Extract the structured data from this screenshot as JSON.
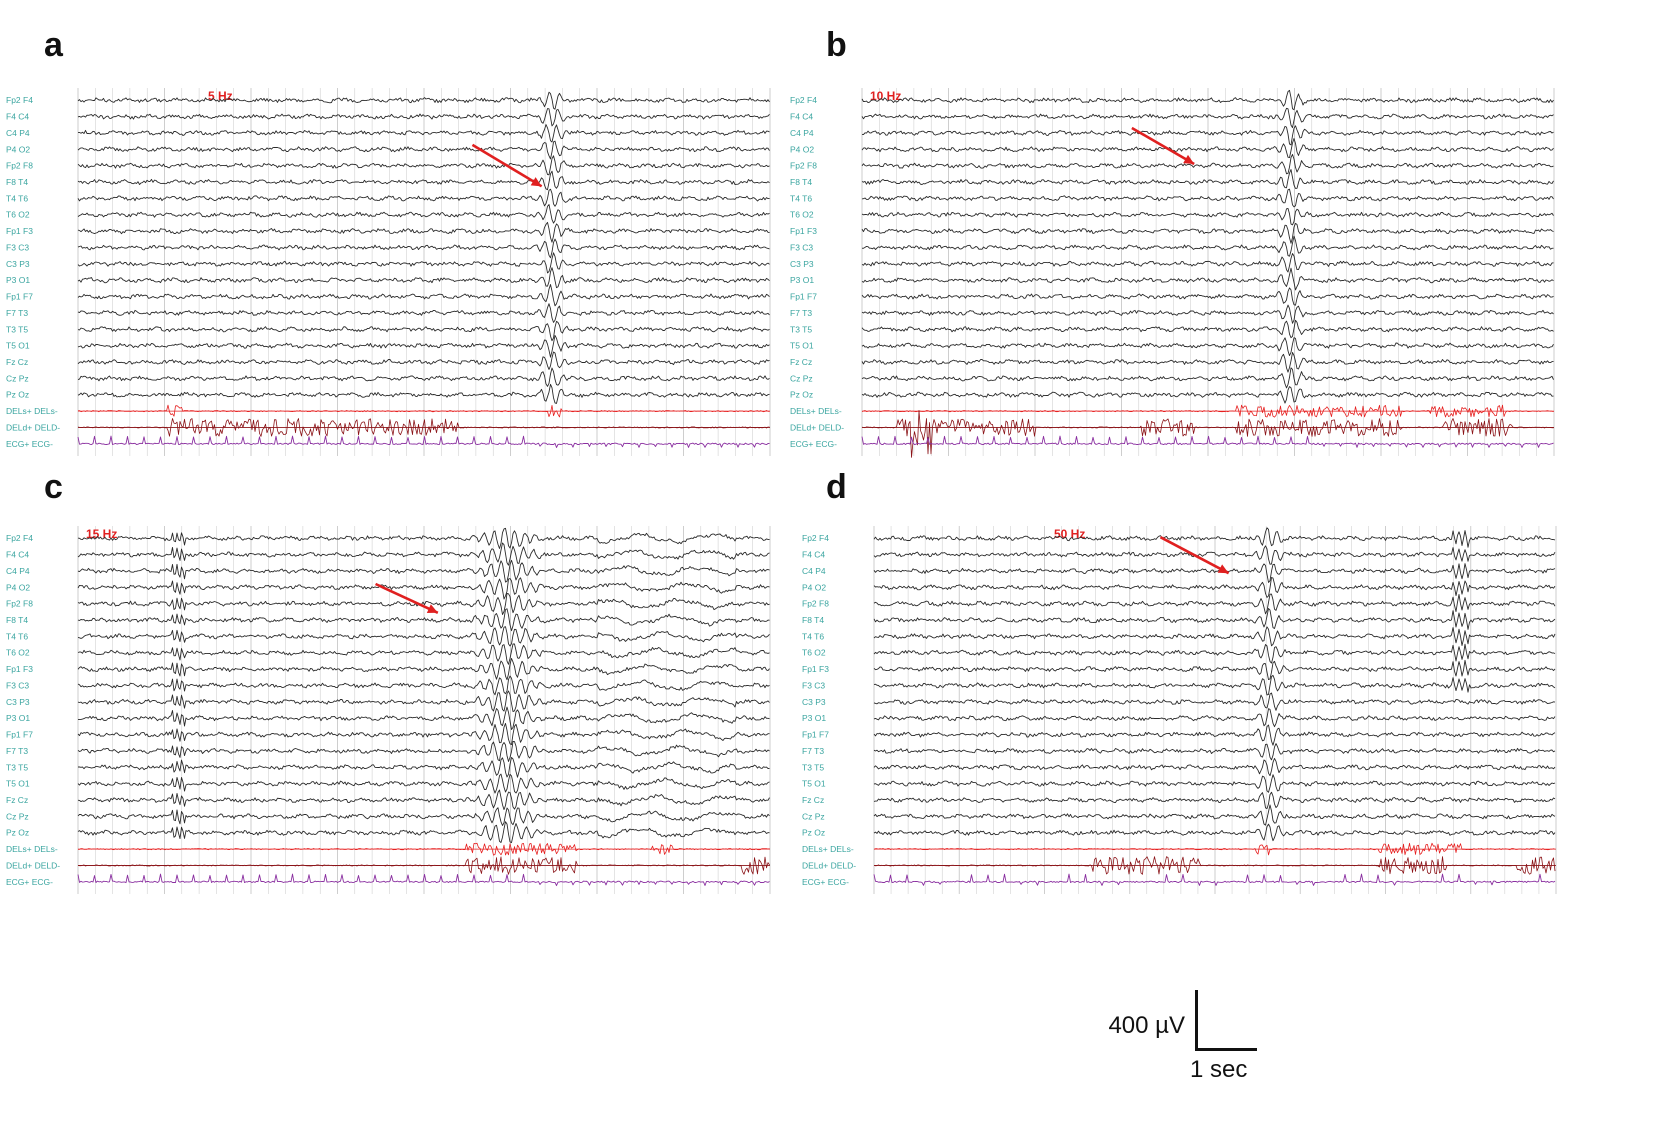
{
  "panels": [
    {
      "letter": "a",
      "freq": "5 Hz",
      "event": 0.685,
      "arrow": {
        "from": [
          0.57,
          0.147
        ],
        "to": [
          0.67,
          0.262
        ]
      },
      "stim_bursts": [],
      "del_o": [
        [
          0.13,
          0.55
        ]
      ],
      "del_s": [
        [
          0.13,
          0.15
        ],
        [
          0.68,
          0.7
        ]
      ],
      "channel_side": "left",
      "ref_line_mid": true
    },
    {
      "letter": "b",
      "freq": "10 Hz",
      "event": 0.62,
      "arrow": {
        "from": [
          0.39,
          0.1
        ],
        "to": [
          0.48,
          0.2
        ]
      },
      "stim_bursts": [
        [
          0.07,
          0.1
        ]
      ],
      "del_o": [
        [
          0.05,
          0.25
        ],
        [
          0.4,
          0.48
        ],
        [
          0.54,
          0.78
        ],
        [
          0.84,
          0.94
        ]
      ],
      "del_s": [
        [
          0.54,
          0.78
        ],
        [
          0.82,
          0.93
        ]
      ],
      "channel_side": "left",
      "ref_line_mid": false
    },
    {
      "letter": "c",
      "freq": "15 Hz",
      "event": 0.62,
      "arrow": {
        "from": [
          0.43,
          0.15
        ],
        "to": [
          0.52,
          0.23
        ]
      },
      "stim_bursts": [],
      "del_o": [
        [
          0.56,
          0.72
        ],
        [
          0.96,
          1.0
        ]
      ],
      "del_s": [
        [
          0.56,
          0.72
        ],
        [
          0.83,
          0.86
        ]
      ],
      "channel_side": "left",
      "ref_line_mid": false
    },
    {
      "letter": "d",
      "freq": "50 Hz",
      "event": 0.58,
      "arrow": {
        "from": [
          0.42,
          0.02
        ],
        "to": [
          0.52,
          0.12
        ]
      },
      "stim_bursts": [],
      "del_o": [
        [
          0.32,
          0.48
        ],
        [
          0.74,
          0.84
        ],
        [
          0.94,
          1.0
        ]
      ],
      "del_s": [
        [
          0.56,
          0.58
        ],
        [
          0.74,
          0.86
        ]
      ],
      "channel_side": "left",
      "ref_line_mid": false
    }
  ],
  "channels": [
    "Fp2 F4",
    "F4 C4",
    "C4 P4",
    "P4 O2",
    "Fp2 F8",
    "F8 T4",
    "T4 T6",
    "T6 O2",
    "Fp1 F3",
    "F3 C3",
    "C3 P3",
    "P3 O1",
    "Fp1 F7",
    "F7 T3",
    "T3 T5",
    "T5 O1",
    "Fz Cz",
    "Cz Pz",
    "Pz Oz",
    "DELs+ DELs-",
    "DELd+ DELD-",
    "ECG+ ECG-"
  ],
  "scale": {
    "voltage": "400 µV",
    "time": "1 sec"
  },
  "colors": {
    "eeg": "#2b2b2b",
    "grid": "#c9c9c9",
    "label": "#3aa5a0",
    "stim_label": "#e02020",
    "del_s": "#e62020",
    "del_o": "#8b1418",
    "ecg": "#8a2fa0",
    "arrow": "#e02020"
  }
}
